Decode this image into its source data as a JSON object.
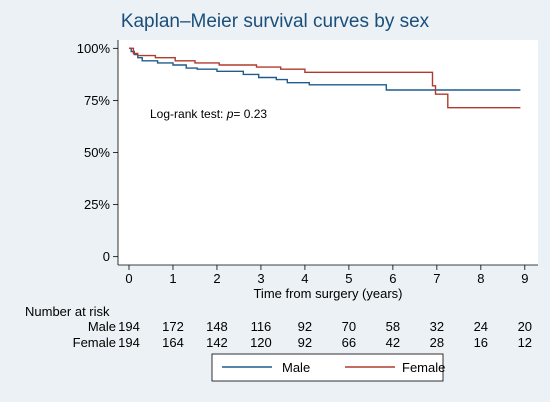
{
  "chart_data": {
    "type": "line",
    "title": "Kaplan–Meier survival curves by sex",
    "xlabel": "Time from surgery (years)",
    "ylabel": "",
    "xlim": [
      -0.25,
      9.3
    ],
    "ylim": [
      -0.04,
      1.04
    ],
    "x_ticks": [
      0,
      1,
      2,
      3,
      4,
      5,
      6,
      7,
      8,
      9
    ],
    "y_ticks": [
      {
        "value": 0,
        "label": "0"
      },
      {
        "value": 0.25,
        "label": "25%"
      },
      {
        "value": 0.5,
        "label": "50%"
      },
      {
        "value": 0.75,
        "label": "75%"
      },
      {
        "value": 1.0,
        "label": "100%"
      }
    ],
    "annotation_prefix": "Log-rank test: ",
    "annotation_p": "p",
    "annotation_suffix": "= 0.23",
    "series": [
      {
        "name": "Male",
        "color": "#1f5c8b",
        "steps": [
          [
            0,
            1.0
          ],
          [
            0.05,
            0.985
          ],
          [
            0.12,
            0.97
          ],
          [
            0.2,
            0.955
          ],
          [
            0.3,
            0.94
          ],
          [
            0.65,
            0.93
          ],
          [
            1.0,
            0.92
          ],
          [
            1.3,
            0.905
          ],
          [
            1.55,
            0.9
          ],
          [
            2.0,
            0.89
          ],
          [
            2.6,
            0.875
          ],
          [
            2.95,
            0.86
          ],
          [
            3.35,
            0.85
          ],
          [
            3.6,
            0.835
          ],
          [
            4.1,
            0.825
          ],
          [
            5.85,
            0.8
          ],
          [
            8.9,
            0.8
          ]
        ]
      },
      {
        "name": "Female",
        "color": "#b03a2e",
        "steps": [
          [
            0,
            1.0
          ],
          [
            0.1,
            0.975
          ],
          [
            0.2,
            0.965
          ],
          [
            0.6,
            0.955
          ],
          [
            1.05,
            0.94
          ],
          [
            1.5,
            0.93
          ],
          [
            2.05,
            0.92
          ],
          [
            2.9,
            0.91
          ],
          [
            3.45,
            0.9
          ],
          [
            4.0,
            0.885
          ],
          [
            6.9,
            0.82
          ],
          [
            6.97,
            0.78
          ],
          [
            7.25,
            0.715
          ],
          [
            8.9,
            0.715
          ]
        ]
      }
    ],
    "risk_table": {
      "label": "Number at risk",
      "times": [
        0,
        1,
        2,
        3,
        4,
        5,
        6,
        7,
        8,
        9
      ],
      "rows": [
        {
          "name": "Male",
          "values": [
            194,
            172,
            148,
            116,
            92,
            70,
            58,
            32,
            24,
            20
          ]
        },
        {
          "name": "Female",
          "values": [
            194,
            164,
            142,
            120,
            92,
            66,
            42,
            28,
            16,
            12
          ]
        }
      ]
    },
    "legend": {
      "position": "bottom",
      "entries": [
        "Male",
        "Female"
      ]
    }
  }
}
